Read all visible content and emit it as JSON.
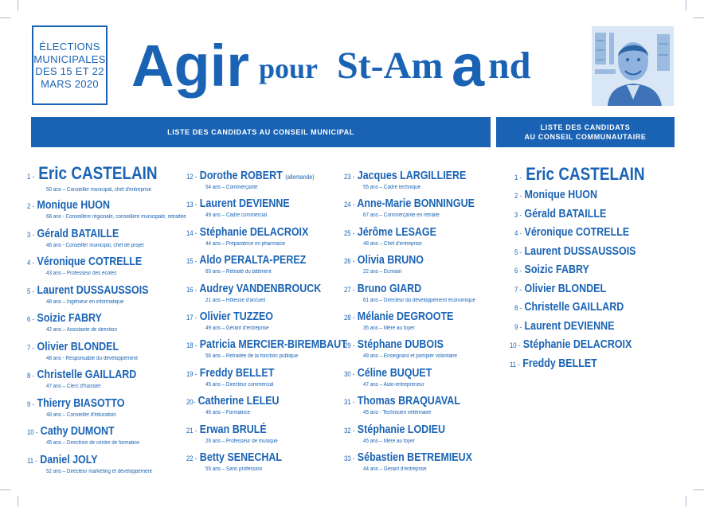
{
  "colors": {
    "brand": "#1a63b4",
    "banner_text": "#ffffff"
  },
  "election": [
    "ÉLECTIONS",
    "MUNICIPALES",
    "DES 15 ET 22",
    "MARS 2020"
  ],
  "logo": {
    "agir": "Agir",
    "pour": "pour",
    "st_am": "St-Am",
    "a": "a",
    "nd": "nd"
  },
  "banners": {
    "municipal": "LISTE DES CANDIDATS AU CONSEIL MUNICIPAL",
    "communautaire_1": "LISTE DES CANDIDATS",
    "communautaire_2": "AU CONSEIL COMMUNAUTAIRE"
  },
  "municipal": [
    {
      "num": "1 -",
      "name": "Eric CASTELAIN",
      "desc": "50 ans – Conseiller municipal, chef d'entreprise"
    },
    {
      "num": "2 -",
      "name": "Monique HUON",
      "desc": "68 ans - Conseillère régionale, conseillère municipale, retraitée"
    },
    {
      "num": "3 -",
      "name": "Gérald BATAILLE",
      "desc": "46 ans - Conseiller municipal, chef de projet"
    },
    {
      "num": "4 -",
      "name": "Véronique COTRELLE",
      "desc": "43 ans – Professeur des écoles"
    },
    {
      "num": "5 -",
      "name": "Laurent DUSSAUSSOIS",
      "desc": "48 ans – Ingénieur en informatique"
    },
    {
      "num": "6 -",
      "name": "Soizic FABRY",
      "desc": "42 ans – Assistante de direction"
    },
    {
      "num": "7 -",
      "name": "Olivier BLONDEL",
      "desc": "48 ans - Responsable du développement"
    },
    {
      "num": "8 -",
      "name": "Christelle GAILLARD",
      "desc": "47 ans – Clerc d'huissier"
    },
    {
      "num": "9 -",
      "name": "Thierry BIASOTTO",
      "desc": "48 ans – Conseiller d'éducation"
    },
    {
      "num": "10 -",
      "name": "Cathy DUMONT",
      "desc": "45 ans – Directrice de centre de formation"
    },
    {
      "num": "11 -",
      "name": "Daniel JOLY",
      "desc": "52 ans – Directeur marketing et développement"
    },
    {
      "num": "12 -",
      "name": "Dorothe ROBERT",
      "note": "(allemande)",
      "desc": "54 ans – Commerçante"
    },
    {
      "num": "13 -",
      "name": "Laurent DEVIENNE",
      "desc": "49 ans – Cadre commercial"
    },
    {
      "num": "14 -",
      "name": "Stéphanie DELACROIX",
      "desc": "44 ans – Préparatrice en pharmacie"
    },
    {
      "num": "15 -",
      "name": "Aldo PERALTA-PEREZ",
      "desc": "60 ans – Retraité du bâtiment"
    },
    {
      "num": "16 -",
      "name": "Audrey VANDENBROUCK",
      "desc": "21 ans – Hôtesse d'accueil"
    },
    {
      "num": "17 -",
      "name": "Olivier TUZZEO",
      "desc": "49 ans – Gérant d'entreprise"
    },
    {
      "num": "18 -",
      "name": "Patricia MERCIER-BIREMBAUT",
      "desc": "56 ans – Retraitée de la fonction publique"
    },
    {
      "num": "19 -",
      "name": "Freddy BELLET",
      "desc": "45 ans – Directeur commercial"
    },
    {
      "num": "20-",
      "name": "Catherine LELEU",
      "desc": "46 ans – Formatrice"
    },
    {
      "num": "21 -",
      "name": "Erwan BRULÉ",
      "desc": "26 ans – Professeur de musique"
    },
    {
      "num": "22 -",
      "name": "Betty SENECHAL",
      "desc": "55 ans – Sans profession"
    },
    {
      "num": "23 -",
      "name": "Jacques LARGILLIERE",
      "desc": "55 ans – Cadre technique"
    },
    {
      "num": "24 -",
      "name": "Anne-Marie BONNINGUE",
      "desc": "67 ans – Commerçante en retraite"
    },
    {
      "num": "25 -",
      "name": "Jérôme LESAGE",
      "desc": "48 ans – Chef d'entreprise"
    },
    {
      "num": "26 -",
      "name": "Olivia BRUNO",
      "desc": "22 ans – Ecrivain"
    },
    {
      "num": "27 -",
      "name": "Bruno GIARD",
      "desc": "61 ans – Directeur du développement économique"
    },
    {
      "num": "28 -",
      "name": "Mélanie DEGROOTE",
      "desc": "35 ans – Mère au foyer"
    },
    {
      "num": "29 -",
      "name": "Stéphane DUBOIS",
      "desc": "49 ans – Enseignant et pompier volontaire"
    },
    {
      "num": "30 -",
      "name": "Céline BUQUET",
      "desc": "47 ans – Auto-entrepreneur"
    },
    {
      "num": "31 -",
      "name": "Thomas BRAQUAVAL",
      "desc": "45 ans - Technicien vétérinaire"
    },
    {
      "num": "32 -",
      "name": "Stéphanie LODIEU",
      "desc": "45 ans – Mère au foyer"
    },
    {
      "num": "33 -",
      "name": "Sébastien BETREMIEUX",
      "desc": "44 ans – Gérant d'entreprise"
    }
  ],
  "communautaire": [
    {
      "num": "1 -",
      "name": "Eric CASTELAIN"
    },
    {
      "num": "2 -",
      "name": "Monique HUON"
    },
    {
      "num": "3 -",
      "name": "Gérald BATAILLE"
    },
    {
      "num": "4 -",
      "name": "Véronique COTRELLE"
    },
    {
      "num": "5 -",
      "name": "Laurent DUSSAUSSOIS"
    },
    {
      "num": "6 -",
      "name": "Soizic FABRY"
    },
    {
      "num": "7 -",
      "name": "Olivier BLONDEL"
    },
    {
      "num": "8 -",
      "name": "Christelle GAILLARD"
    },
    {
      "num": "9 -",
      "name": "Laurent DEVIENNE"
    },
    {
      "num": "10 -",
      "name": "Stéphanie DELACROIX"
    },
    {
      "num": "11 -",
      "name": "Freddy BELLET"
    }
  ]
}
